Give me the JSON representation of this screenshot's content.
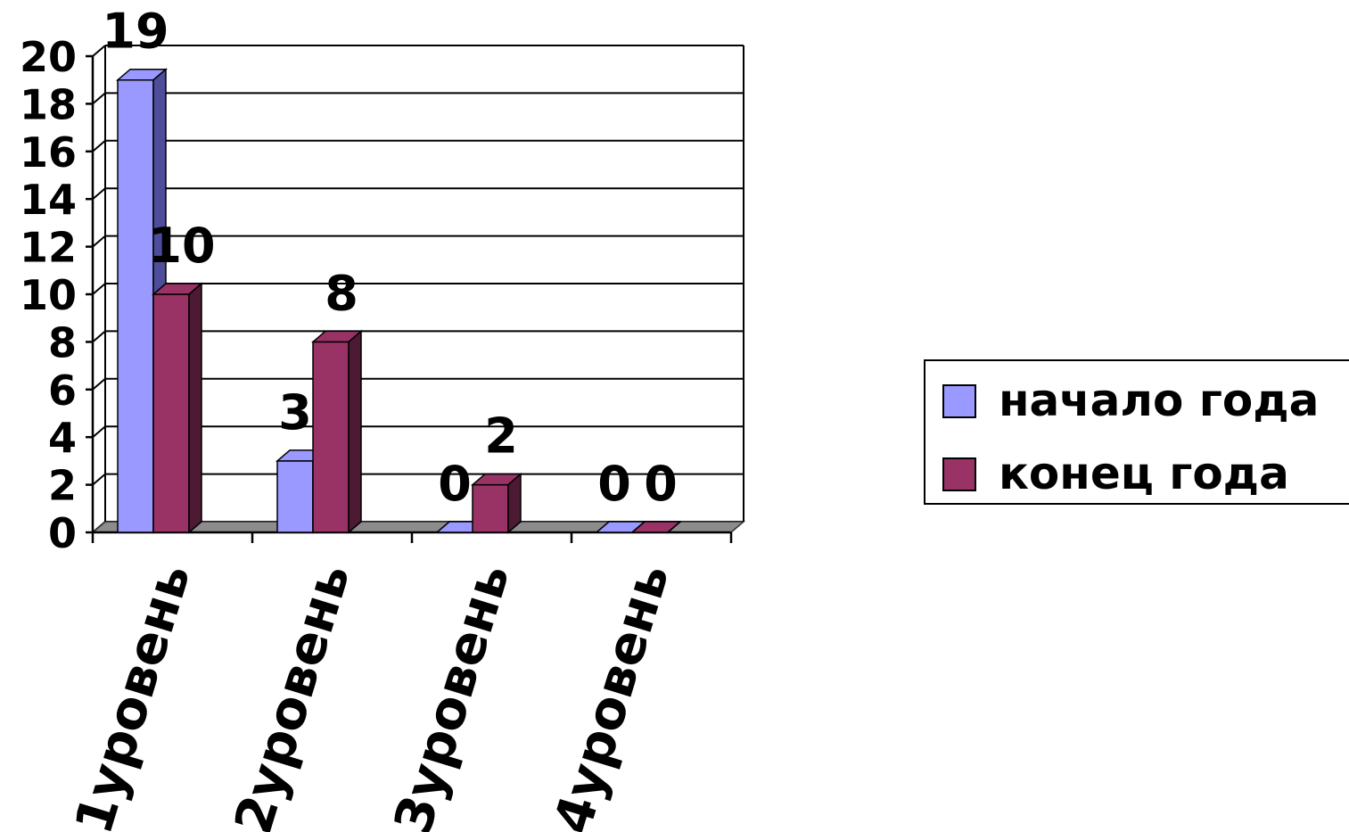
{
  "chart_data": {
    "type": "bar",
    "categories": [
      "1уровень",
      "2уровень",
      "3уровень",
      "4уровень"
    ],
    "series": [
      {
        "name": "начало года",
        "values": [
          19,
          3,
          0,
          0
        ],
        "color": "#9999ff"
      },
      {
        "name": "конец года",
        "values": [
          10,
          8,
          2,
          0
        ],
        "color": "#993366"
      }
    ],
    "data_labels": [
      [
        "19",
        "3",
        "0",
        "0"
      ],
      [
        "10",
        "8",
        "2",
        "0"
      ]
    ],
    "title": "",
    "xlabel": "",
    "ylabel": "",
    "ylim": [
      0,
      20
    ],
    "yticks": [
      "0",
      "2",
      "4",
      "6",
      "8",
      "10",
      "12",
      "14",
      "16",
      "18",
      "20"
    ],
    "grid": true,
    "legend_position": "right",
    "colors": {
      "series1_side": "#4d4d99",
      "series2_side": "#4d1a33",
      "floor": "#8c8c8c",
      "gridline": "#000000"
    }
  }
}
